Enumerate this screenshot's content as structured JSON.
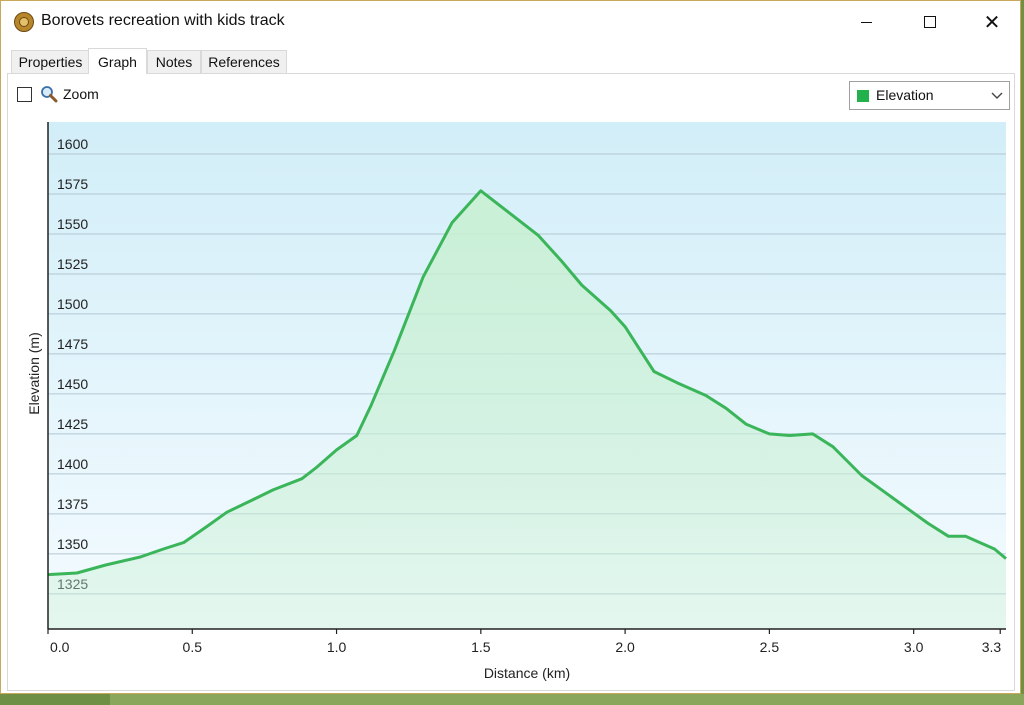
{
  "window": {
    "title": "Borovets recreation with kids track",
    "close_glyph": "✕"
  },
  "tabs": [
    {
      "label": "Properties",
      "active": false
    },
    {
      "label": "Graph",
      "active": true
    },
    {
      "label": "Notes",
      "active": false
    },
    {
      "label": "References",
      "active": false
    }
  ],
  "toolbar": {
    "zoom_label": "Zoom",
    "zoom_checked": false,
    "series_select": "Elevation",
    "series_color": "#22b14c"
  },
  "colors": {
    "line": "#3bb55a",
    "fill_top": "#d2eef8",
    "fill_bottom": "#f4fbff",
    "area": "#c8f0d2"
  },
  "chart_data": {
    "type": "area",
    "title": "",
    "xlabel": "Distance  (km)",
    "ylabel": "Elevation (m)",
    "xlim": [
      0,
      3.32
    ],
    "ylim": [
      1303,
      1620
    ],
    "x_ticks": [
      "0.0",
      "0.5",
      "1.0",
      "1.5",
      "2.0",
      "2.5",
      "3.0",
      "3.3"
    ],
    "x_tick_values": [
      0.0,
      0.5,
      1.0,
      1.5,
      2.0,
      2.5,
      3.0,
      3.3
    ],
    "y_ticks": [
      "1325",
      "1350",
      "1375",
      "1400",
      "1425",
      "1450",
      "1475",
      "1500",
      "1525",
      "1550",
      "1575",
      "1600"
    ],
    "y_tick_values": [
      1325,
      1350,
      1375,
      1400,
      1425,
      1450,
      1475,
      1500,
      1525,
      1550,
      1575,
      1600
    ],
    "grid": true,
    "series": [
      {
        "x": [
          0.0,
          0.1,
          0.2,
          0.32,
          0.4,
          0.47,
          0.55,
          0.62,
          0.7,
          0.78,
          0.88,
          0.93,
          1.0,
          1.07,
          1.12,
          1.2,
          1.3,
          1.4,
          1.5,
          1.6,
          1.7,
          1.78,
          1.85,
          1.95,
          2.0,
          2.05,
          2.1,
          2.18,
          2.28,
          2.35,
          2.42,
          2.5,
          2.57,
          2.65,
          2.72,
          2.82,
          2.95,
          3.05,
          3.12,
          3.18,
          3.23,
          3.28,
          3.32
        ],
        "y": [
          1337,
          1338,
          1343,
          1348,
          1353,
          1357,
          1367,
          1376,
          1383,
          1390,
          1397,
          1404,
          1415,
          1424,
          1443,
          1477,
          1523,
          1557,
          1577,
          1563,
          1549,
          1533,
          1518,
          1502,
          1492,
          1478,
          1464,
          1457,
          1449,
          1441,
          1431,
          1425,
          1424,
          1425,
          1417,
          1399,
          1382,
          1369,
          1361,
          1361,
          1357,
          1353,
          1347
        ]
      }
    ]
  }
}
